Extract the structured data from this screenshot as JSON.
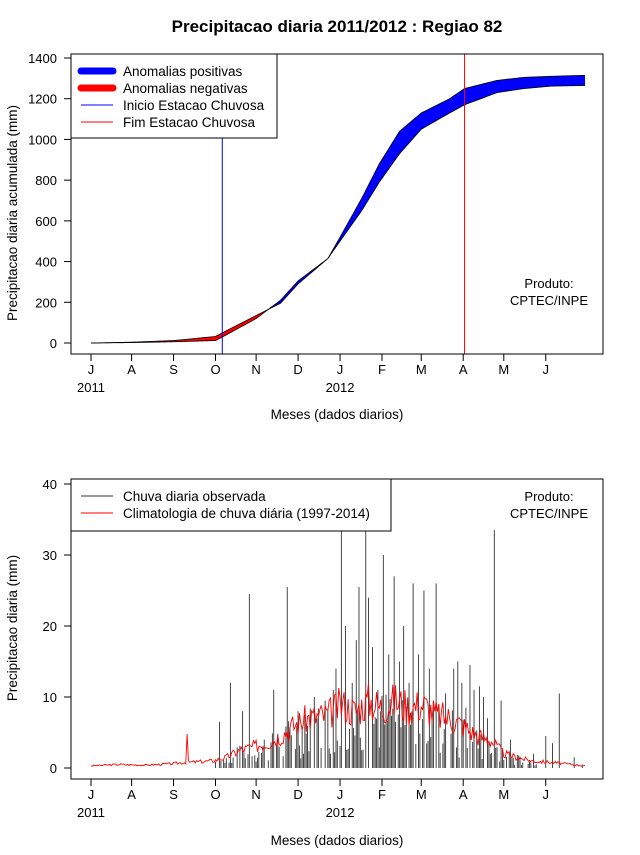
{
  "chart_data": [
    {
      "type": "area",
      "title": "Precipitacao diaria 2011/2012 : Regiao 82",
      "xlabel": "Meses (dados diarios)",
      "ylabel": "Precipitacao diaria acumulada (mm)",
      "ylim": [
        0,
        1400
      ],
      "yticks": [
        "0",
        "200",
        "400",
        "600",
        "800",
        "1000",
        "1200",
        "1400"
      ],
      "month_ticks": [
        "J",
        "A",
        "S",
        "O",
        "N",
        "D",
        "J",
        "F",
        "M",
        "A",
        "M",
        "J"
      ],
      "year_labels": [
        "2011",
        "2012"
      ],
      "legend": [
        {
          "label": "Anomalias positivas",
          "color": "#0000ff"
        },
        {
          "label": "Anomalias negativas",
          "color": "#ff0000"
        },
        {
          "label": "Inicio Estacao Chuvosa",
          "color": "#0000ff"
        },
        {
          "label": "Fim Estacao Chuvosa",
          "color": "#ff0000"
        }
      ],
      "annotation": [
        "Produto:",
        "CPTEC/INPE"
      ],
      "rainy_season_start_day": 97,
      "rainy_season_end_day": 276,
      "x_days": [
        0,
        30,
        61,
        92,
        100,
        122,
        140,
        153,
        175,
        184,
        200,
        213,
        228,
        244,
        265,
        276,
        300,
        320,
        340,
        365
      ],
      "observed_accum": [
        0,
        2,
        6,
        12,
        40,
        120,
        210,
        305,
        415,
        520,
        710,
        880,
        1040,
        1130,
        1200,
        1250,
        1290,
        1305,
        1310,
        1315
      ],
      "climatology_accum": [
        0,
        4,
        12,
        32,
        60,
        135,
        195,
        290,
        415,
        500,
        650,
        790,
        930,
        1050,
        1130,
        1170,
        1230,
        1250,
        1262,
        1265
      ]
    },
    {
      "type": "bar",
      "xlabel": "Meses (dados diarios)",
      "ylabel": "Precipitacao diaria (mm)",
      "ylim": [
        0,
        40
      ],
      "yticks": [
        "0",
        "10",
        "20",
        "30",
        "40"
      ],
      "month_ticks": [
        "J",
        "A",
        "S",
        "O",
        "N",
        "D",
        "J",
        "F",
        "M",
        "A",
        "M",
        "J"
      ],
      "year_labels": [
        "2011",
        "2012"
      ],
      "legend": [
        {
          "label": "Chuva diaria observada",
          "color": "#000000"
        },
        {
          "label": "Climatologia de chuva diária (1997-2014)",
          "color": "#ff0000"
        }
      ],
      "annotation": [
        "Produto:",
        "CPTEC/INPE"
      ],
      "observed_series_name": "Chuva diaria observada",
      "observed_peaks": [
        {
          "day": 95,
          "value": 6.5
        },
        {
          "day": 103,
          "value": 12
        },
        {
          "day": 112,
          "value": 8
        },
        {
          "day": 117,
          "value": 24.5
        },
        {
          "day": 128,
          "value": 4
        },
        {
          "day": 135,
          "value": 11
        },
        {
          "day": 145,
          "value": 25.5
        },
        {
          "day": 153,
          "value": 8
        },
        {
          "day": 158,
          "value": 7.5
        },
        {
          "day": 165,
          "value": 10
        },
        {
          "day": 173,
          "value": 9.5
        },
        {
          "day": 179,
          "value": 11
        },
        {
          "day": 181,
          "value": 14
        },
        {
          "day": 185,
          "value": 33.5
        },
        {
          "day": 188,
          "value": 20
        },
        {
          "day": 193,
          "value": 12
        },
        {
          "day": 196,
          "value": 18
        },
        {
          "day": 198,
          "value": 25.5
        },
        {
          "day": 203,
          "value": 33.5
        },
        {
          "day": 205,
          "value": 24
        },
        {
          "day": 208,
          "value": 17
        },
        {
          "day": 212,
          "value": 11
        },
        {
          "day": 216,
          "value": 30
        },
        {
          "day": 220,
          "value": 16
        },
        {
          "day": 224,
          "value": 27
        },
        {
          "day": 228,
          "value": 15
        },
        {
          "day": 231,
          "value": 20
        },
        {
          "day": 235,
          "value": 12
        },
        {
          "day": 238,
          "value": 26
        },
        {
          "day": 242,
          "value": 16
        },
        {
          "day": 246,
          "value": 25
        },
        {
          "day": 250,
          "value": 14
        },
        {
          "day": 255,
          "value": 26
        },
        {
          "day": 262,
          "value": 10.5
        },
        {
          "day": 268,
          "value": 14
        },
        {
          "day": 271,
          "value": 15
        },
        {
          "day": 274,
          "value": 12
        },
        {
          "day": 277,
          "value": 8.5
        },
        {
          "day": 280,
          "value": 14.5
        },
        {
          "day": 283,
          "value": 11
        },
        {
          "day": 287,
          "value": 11.5
        },
        {
          "day": 290,
          "value": 10
        },
        {
          "day": 293,
          "value": 7
        },
        {
          "day": 298,
          "value": 33.5
        },
        {
          "day": 303,
          "value": 9.5
        },
        {
          "day": 310,
          "value": 4
        },
        {
          "day": 327,
          "value": 2
        },
        {
          "day": 336,
          "value": 4.5
        },
        {
          "day": 341,
          "value": 3.5
        },
        {
          "day": 346,
          "value": 10.5
        },
        {
          "day": 357,
          "value": 1.5
        },
        {
          "day": 363,
          "value": 0.5
        }
      ],
      "climatology_series_name": "Climatologia de chuva diária (1997-2014)",
      "climatology_x_days": [
        0,
        20,
        40,
        60,
        70,
        71,
        72,
        90,
        100,
        110,
        120,
        130,
        140,
        150,
        160,
        175,
        185,
        195,
        205,
        215,
        225,
        235,
        245,
        255,
        265,
        275,
        285,
        295,
        305,
        315,
        325,
        340,
        355,
        365
      ],
      "climatology_values": [
        0.3,
        0.5,
        0.4,
        0.6,
        0.8,
        5,
        0.8,
        1.0,
        1.5,
        2.5,
        3.0,
        3.5,
        4.5,
        6.0,
        7.0,
        7.5,
        9.0,
        8.0,
        9.5,
        8.5,
        9.5,
        8.5,
        9.0,
        7.5,
        7.0,
        6.0,
        4.5,
        4.0,
        2.0,
        1.5,
        1.0,
        0.8,
        0.5,
        0.3
      ]
    }
  ]
}
